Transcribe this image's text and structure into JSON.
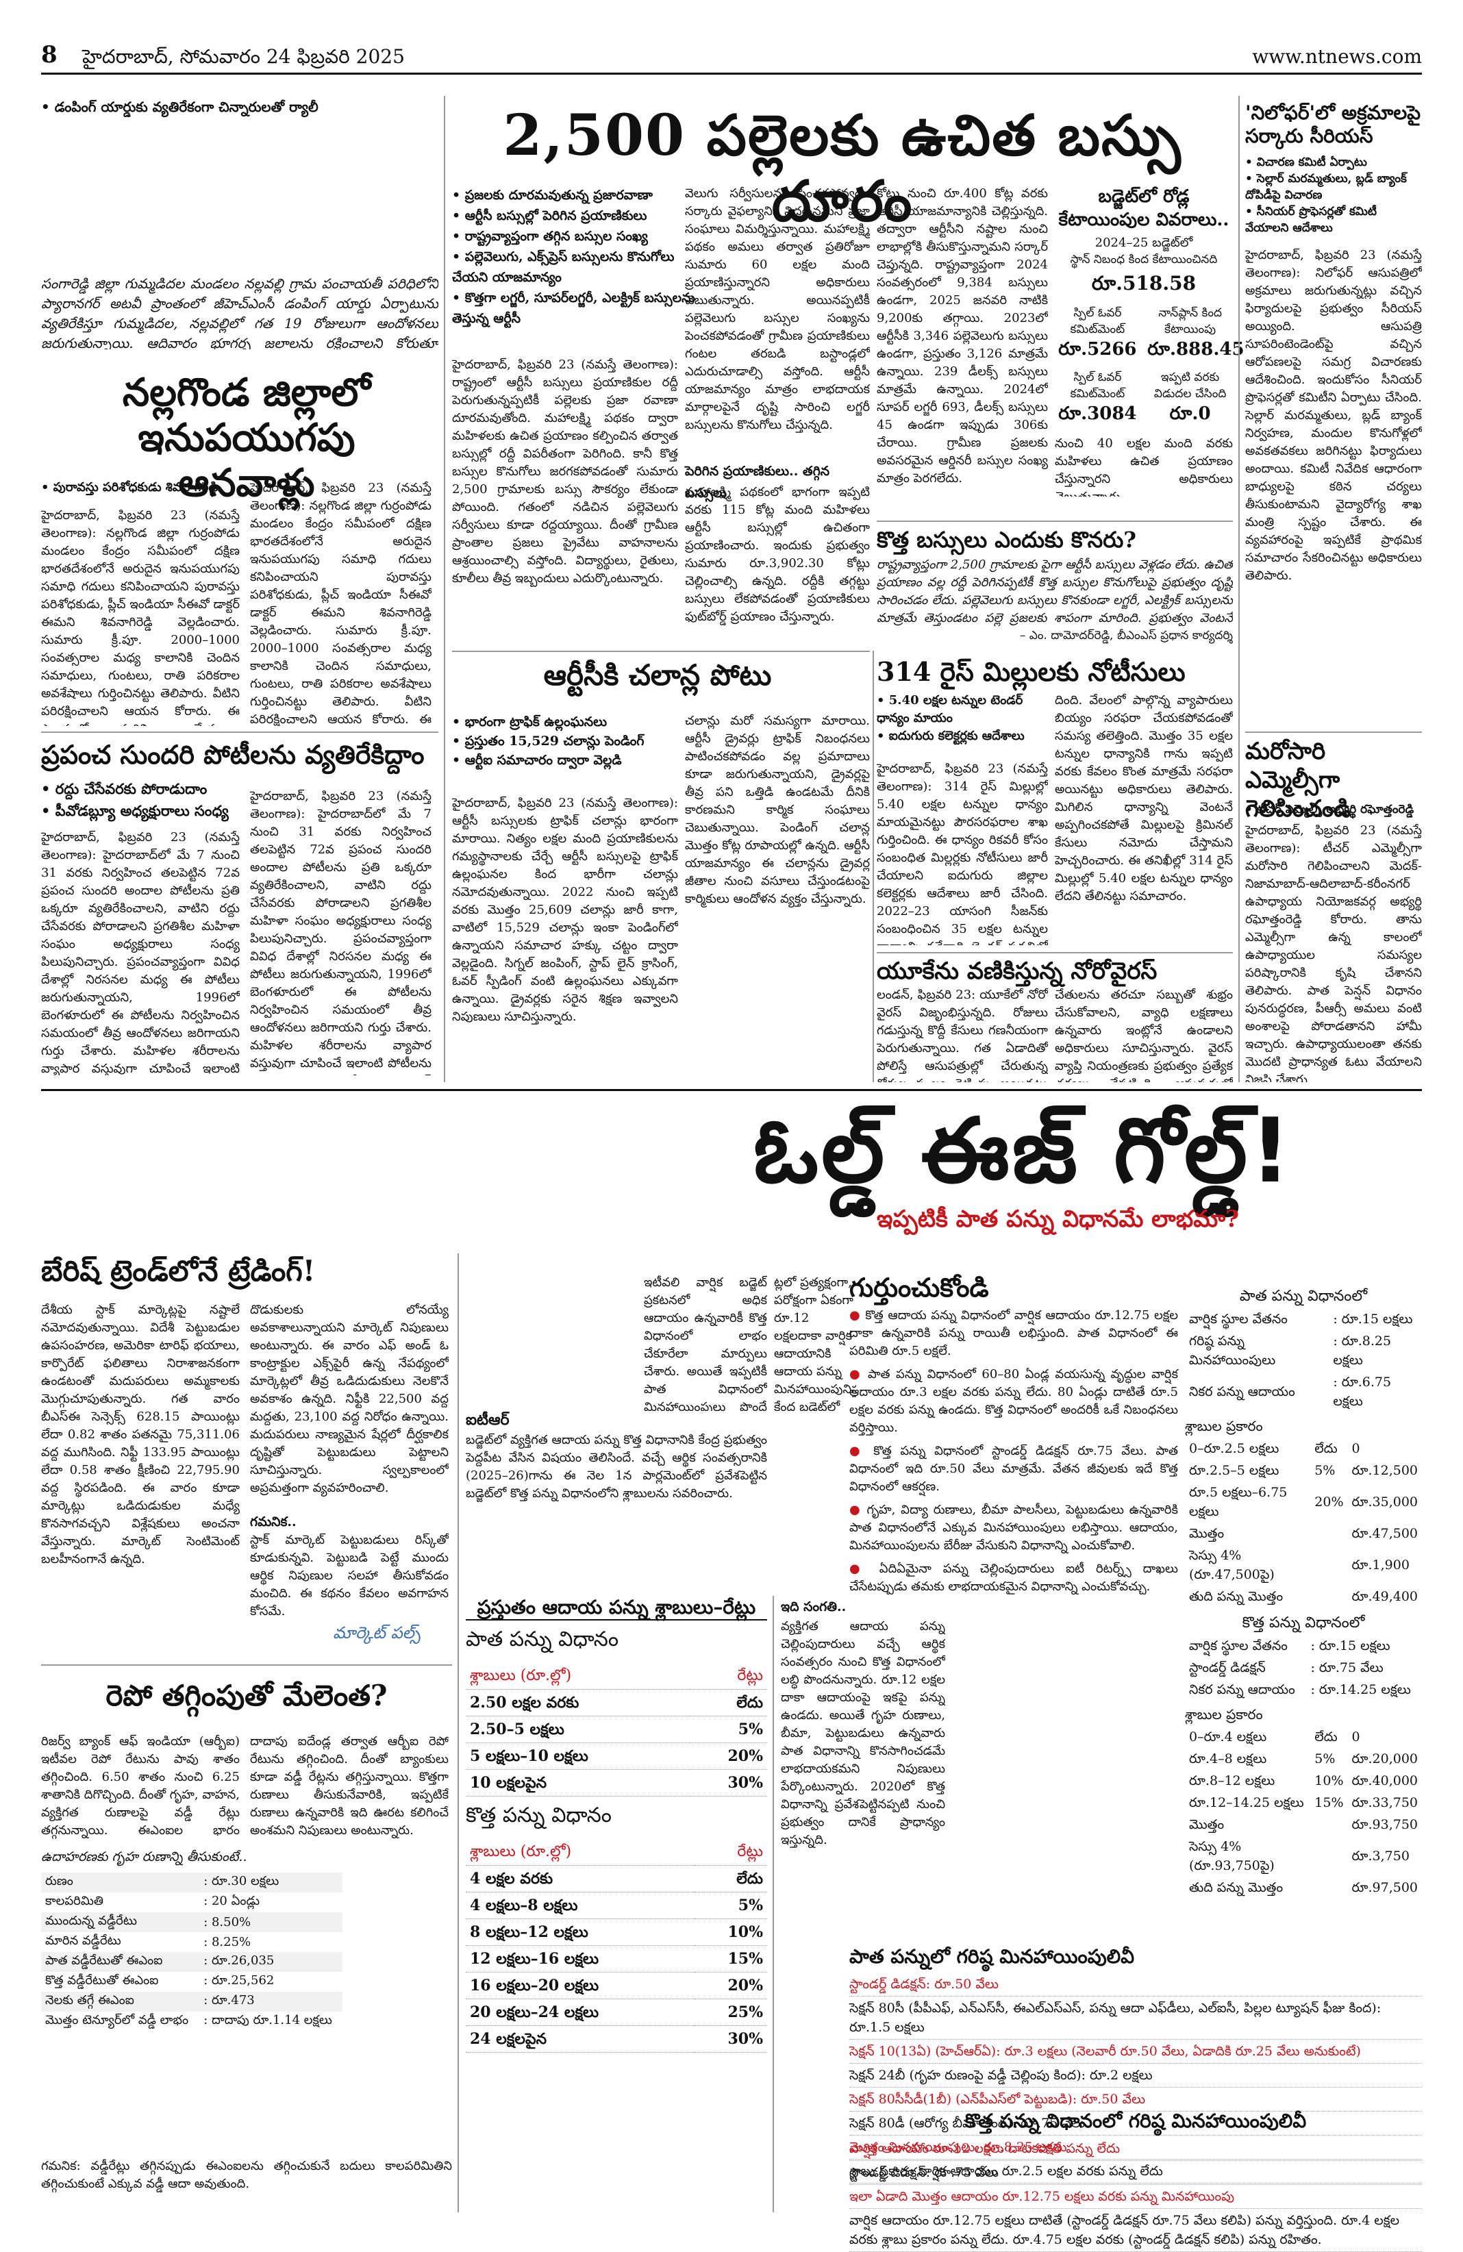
{
  "header": {
    "page_number": "8",
    "date_line": "హైదరాబాద్, సోమవారం 24 ఫిబ్రవరి 2025",
    "website": "www.ntnews.com"
  },
  "strip": {
    "text": "• డంపింగ్ యార్డుకు వ్యతిరేకంగా చిన్నారులతో ర్యాలీ"
  },
  "sangareddy": {
    "body": "సంగారెడ్డి జిల్లా గుమ్మడిదల మండలం నల్లవల్లి గ్రామ పంచాయతీ పరిధిలోని ప్యారానగర్ అటవీ ప్రాంతంలో జీహెచ్‌ఎంసీ డంపింగ్ యార్డు ఏర్పాటును వ్యతిరేకిస్తూ గుమ్మడిదల, నల్లవల్లిలో గత 19 రోజులుగా ఆందోళనలు జరుగుతున్నాయి. ఆదివారం భూగర్భ జలాలను రక్షించాలని కోరుతూ చిన్నారులతో ర్యాలీ నిర్వహించారు."
  },
  "nalgonda": {
    "headline": "నల్లగొండ జిల్లాలో ఇనుపయుగపు ఆనవాళ్లు",
    "bullet": "పురావస్తు పరిశోధకుడు శివనాగిరెడ్డి",
    "body": "హైదరాబాద్, ఫిబ్రవరి 23 (నమస్తే తెలంగాణ): నల్లగొండ జిల్లా గుర్రంపోడు మండలం కేంద్రం సమీపంలో దక్షిణ భారతదేశంలోనే అరుదైన ఇనుపయుగపు సమాధి గదులు కనిపించాయని పురావస్తు పరిశోధకుడు, ప్లీచ్ ఇండియా సీఈవో డాక్టర్ ఈమని శివనాగిరెడ్డి వెల్లడించారు. సుమారు క్రీ.పూ. 2000–1000 సంవత్సరాల మధ్య కాలానికి చెందిన సమాధులు, గుంటలు, రాతి పరికరాల అవశేషాలు గుర్తించినట్టు తెలిపారు. వీటిని పరిరక్షించాలని ఆయన కోరారు. ఈ ప్రాంతంలో మరిన్ని అన్వేషణలు జరపాల్సిన అవసరం ఉందన్నారు. స్థానిక యువకులు, విద్యార్థులు చారిత్రక సంపదను కాపాడాలని సూచించారు. గ్రామ శివారులోని కొండ ప్రాంతంలో పెద్ద సంఖ్యలో ఈ ఆనవాళ్లు ఉన్నాయని ఆయన వివరించారు."
  },
  "miss_world": {
    "headline": "ప్రపంచ సుందరి పోటీలను వ్యతిరేకిద్దాం",
    "bullets": [
      "రద్దు చేసేవరకు పోరాడుదాం",
      "పీవోడబ్ల్యూ అధ్యక్షురాలు సంధ్య"
    ],
    "body": "హైదరాబాద్, ఫిబ్రవరి 23 (నమస్తే తెలంగాణ): హైదరాబాద్‌లో మే 7 నుంచి 31 వరకు నిర్వహించ తలపెట్టిన 72వ ప్రపంచ సుందరి అందాల పోటీలను ప్రతి ఒక్కరూ వ్యతిరేకించాలని, వాటిని రద్దు చేసేవరకు పోరాడాలని ప్రగతిశీల మహిళా సంఘం అధ్యక్షురాలు సంధ్య పిలుపునిచ్చారు. ప్రపంచవ్యాప్తంగా వివిధ దేశాల్లో నిరసనల మధ్య ఈ పోటీలు జరుగుతున్నాయని, 1996లో బెంగళూరులో ఈ పోటీలను నిర్వహించిన సమయంలో తీవ్ర ఆందోళనలు జరిగాయని గుర్తు చేశారు. మహిళల శరీరాలను వ్యాపార వస్తువుగా చూపించే ఇలాంటి పోటీలను ప్రభుత్వం విరమించుకోవాలని డిమాండ్ చేశారు. హైదరాబాద్‌లో ఈ పోటీలు నిర్వహించడం తెలంగాణ సంస్కృతికి విరుద్ధమని పేర్కొన్నారు. మహిళా సంఘాలు ఐక్యంగా ఉద్యమించాలని కోరారు."
  },
  "bus": {
    "headline": "2,500 పల్లెలకు ఉచిత బస్సు దూరం",
    "bullets": [
      "ప్రజలకు దూరమవుతున్న ప్రజారవాణా",
      "ఆర్టీసీ బస్సుల్లో పెరిగిన ప్రయాణికులు",
      "రాష్ట్రవ్యాప్తంగా తగ్గిన బస్సుల సంఖ్య",
      "పల్లెవెలుగు, ఎక్స్‌ప్రెస్ బస్సులను కొనుగోలు చేయని యాజమాన్యం",
      "కొత్తగా లగ్జరీ, సూపర్‌లగ్జరీ, ఎలక్ట్రిక్ బస్సులను తెస్తున్న ఆర్టీసీ"
    ],
    "body1": "హైదరాబాద్, ఫిబ్రవరి 23 (నమస్తే తెలంగాణ): రాష్ట్రంలో ఆర్టీసీ బస్సులు ప్రయాణికుల రద్దీ పెరుగుతున్నప్పటికీ పల్లెలకు ప్రజా రవాణా దూరమవుతోంది. మహాలక్ష్మి పథకం ద్వారా మహిళలకు ఉచిత ప్రయాణం కల్పించిన తర్వాత బస్సుల్లో రద్దీ విపరీతంగా పెరిగింది. కానీ కొత్త బస్సుల కొనుగోలు జరగకపోవడంతో సుమారు 2,500 గ్రామాలకు బస్సు సౌకర్యం లేకుండా పోయింది. గతంలో నడిచిన పల్లెవెలుగు సర్వీసులు కూడా రద్దయ్యాయి. దీంతో గ్రామీణ ప్రాంతాల ప్రజలు ప్రైవేటు వాహనాలను ఆశ్రయించాల్సి వస్తోంది. విద్యార్థులు, రైతులు, కూలీలు తీవ్ర ఇబ్బందులు ఎదుర్కొంటున్నారు.",
    "body2": "వెలుగు సర్వీసులను పెంచకపోవ్వడం సర్కారు వైఫల్యానికి నిదర్శనమని ప్రజా సంఘాలు విమర్శిస్తున్నాయి. మహాలక్ష్మి పథకం అమలు తర్వాత ప్రతిరోజూ సుమారు 60 లక్షల మంది ప్రయాణిస్తున్నారని అధికారులు చెబుతున్నారు. అయినప్పటికీ పల్లెవెలుగు బస్సుల సంఖ్యను పెంచకపోవడంతో గ్రామీణ ప్రయాణికులు గంటల తరబడి బస్టాండ్లలో ఎదురుచూడాల్సి వస్తోంది. ఆర్టీసీ యాజమాన్యం మాత్రం లాభదాయక మార్గాలపైనే దృష్టి సారించి లగ్జరీ బస్సులను కొనుగోలు చేస్తున్నది.",
    "subhead": "పెరిగిన ప్రయాణికులు.. తగ్గిన బస్సులు",
    "body3": "మహాలక్ష్మి పథకంలో భాగంగా ఇప్పటి వరకు 115 కోట్ల మంది మహిళలు ఆర్టీసీ బస్సుల్లో ఉచితంగా ప్రయాణించారు. ఇందుకు ప్రభుత్వం సుమారు రూ.3,902.30 కోట్లు చెల్లించాల్సి ఉన్నది. రద్దీకి తగ్గట్టు బస్సులు లేకపోవడంతో ప్రయాణికులు ఫుట్‌బోర్డ్ ప్రయాణం చేస్తున్నారు.",
    "body4": "కోట్లు నుంచి రూ.400 కోట్ల వరకు ఆర్టీసీ యాజమాన్యానికి చెల్లిస్తున్నది. తద్వారా ఆర్టీసీని నష్టాల నుంచి లాభాల్లోకి తీసుకొస్తున్నామని సర్కార్ చెప్తున్నది. రాష్ట్రవ్యాప్తంగా 2024 సంవత్సరంలో 9,384 బస్సులు ఉండగా, 2025 జనవరి నాటికి 9,200కు తగ్గాయి. 2023లో ఆర్టీసీకి 3,346 పల్లెవెలుగు బస్సులు ఉండగా, ప్రస్తుతం 3,126 మాత్రమే ఉన్నాయి. 239 డీలక్స్ బస్సులు మాత్రమే ఉన్నాయి. 2024లో సూపర్ లగ్జరీ 693, డీలక్స్ బస్సులు 45 ఉండగా ఇప్పుడు 306కు చేరాయి. గ్రామీణ ప్రజలకు అవసరమైన ఆర్డినరీ బస్సుల సంఖ్య మాత్రం పెరగలేదు.",
    "budget_title": "బడ్జెట్‌లో రోడ్ల కేటాయింపుల వివరాలు..",
    "budget_year": "2024–25 బడ్జెట్‌లో",
    "budget_line": "స్థాన్ నిబంధ కింద కేటాయించినది",
    "budget_amount": "రూ.518.58",
    "spill_label": "స్పిల్ ఓవర్ కమిట్‌మెంట్",
    "spill_amount": "రూ.5266",
    "nonplan_label": "నాన్‌ప్లాన్ కింద కేటాయింపు",
    "nonplan_amount": "రూ.888.45",
    "spill2_label": "స్పిల్ ఓవర్ కమిట్‌మెంట్",
    "spill2_amount": "రూ.3084",
    "release_label": "ఇప్పటి వరకు విడుదల చేసింది",
    "release_amount": "రూ.0",
    "budget_note": "నుంచి 40 లక్షల మంది వరకు మహిళలు ఉచిత ప్రయాణం చేస్తున్నారని అధికారులు చెబుతున్నారు."
  },
  "new_buses": {
    "headline": "కొత్త బస్సులు ఎందుకు కొనరు?",
    "body": "రాష్ట్రవ్యాప్తంగా 2,500 గ్రామాలకు పైగా ఆర్టీసీ బస్సులు వెళ్లడం లేదు. ఉచిత ప్రయాణం వల్ల రద్దీ పెరిగినప్పటికీ కొత్త బస్సుల కొనుగోలుపై ప్రభుత్వం దృష్టి సారించడం లేదు. పల్లెవెలుగు బస్సులు కొనకుండా లగ్జరీ, ఎలక్ట్రిక్ బస్సులను మాత్రమే తెస్తుండటం పల్లె ప్రజలకు శాపంగా మారింది. ప్రభుత్వం వెంటనే స్పందించి కొత్త బస్సులను కొనుగోలు చేయాలి.",
    "quote_by": "– ఎం. దామోదర్‌రెడ్డి, బీఎంఎస్ ప్రధాన కార్యదర్శి"
  },
  "rtc_fines": {
    "headline": "ఆర్టీసీకి చలాన్ల పోటు",
    "bullets": [
      "భారంగా ట్రాఫిక్ ఉల్లంఘనలు",
      "ప్రస్తుతం 15,529 చలాన్లు పెండింగ్",
      "ఆర్టీఐ సమాచారం ద్వారా వెల్లడి"
    ],
    "body": "హైదరాబాద్, ఫిబ్రవరి 23 (నమస్తే తెలంగాణ): ఆర్టీసీ బస్సులకు ట్రాఫిక్ చలాన్లు భారంగా మారాయి. నిత్యం లక్షల మంది ప్రయాణికులను గమ్యస్థానాలకు చేర్చే ఆర్టీసీ బస్సులపై ట్రాఫిక్ ఉల్లంఘనల కింద భారీగా చలాన్లు నమోదవుతున్నాయి. 2022 నుంచి ఇప్పటి వరకు మొత్తం 25,609 చలాన్లు జారీ కాగా, వాటిలో 15,529 చలాన్లు ఇంకా పెండింగ్‌లో ఉన్నాయని సమాచార హక్కు చట్టం ద్వారా వెల్లడైంది. సిగ్నల్ జంపింగ్, స్టాప్ లైన్ క్రాసింగ్, ఓవర్ స్పీడింగ్ వంటి ఉల్లంఘనలు ఎక్కువగా ఉన్నాయి. డ్రైవర్లకు సరైన శిక్షణ ఇవ్వాలని నిపుణులు సూచిస్తున్నారు.",
    "body2": "చలాన్లు మరో సమస్యగా మారాయి. ఆర్టీసీ డ్రైవర్లు ట్రాఫిక్ నిబంధనలు పాటించకపోవడం వల్ల ప్రమాదాలు కూడా జరుగుతున్నాయని, డ్రైవర్లపై తీవ్ర పని ఒత్తిడి ఉండటమే దీనికి కారణమని కార్మిక సంఘాలు చెబుతున్నాయి. పెండింగ్ చలాన్ల మొత్తం కోట్ల రూపాయల్లో ఉన్నది. ఆర్టీసీ యాజమాన్యం ఈ చలాన్లను డ్రైవర్ల జీతాల నుంచి వసూలు చేస్తుండటంపై కార్మికులు ఆందోళన వ్యక్తం చేస్తున్నారు."
  },
  "rice_mills": {
    "headline": "314 రైస్ మిల్లులకు నోటీసులు",
    "bullets": [
      "5.40 లక్షల టన్నుల టెండర్ ధాన్యం మాయం",
      "ఐదుగురు కలెక్టర్లకు ఆదేశాలు"
    ],
    "body": "హైదరాబాద్, ఫిబ్రవరి 23 (నమస్తే తెలంగాణ): 314 రైస్ మిల్లుల్లో 5.40 లక్షల టన్నుల ధాన్యం మాయమైనట్టు పౌరసరఫరాల శాఖ గుర్తించింది. ఈ ధాన్యం రికవరీ కోసం సంబంధిత మిల్లర్లకు నోటీసులు జారీ చేయాలని ఐదుగురు జిల్లాల కలెక్టర్లకు ఆదేశాలు జారీ చేసింది. 2022–23 యాసంగి సీజన్‌కు సంబంధించిన 35 లక్షల టన్నుల ధాన్యాన్ని గతేడాది టెండర్ పద్ధతిలో విక్రయించగా, మిల్లర్లు ఇప్పటికీ పూర్తిస్థాయిలో అప్పగించలేదు.",
    "body2": "దింది. వేలంలో పాల్గొన్న వ్యాపారులు బియ్యం సరఫరా చేయకపోవడంతో సమస్య తలెత్తింది. మొత్తం 35 లక్షల టన్నుల ధాన్యానికి గాను ఇప్పటి వరకు కేవలం కొంత మాత్రమే సరఫరా అయినట్టు అధికారులు తెలిపారు. మిగిలిన ధాన్యాన్ని వెంటనే అప్పగించకపోతే మిల్లులపై క్రిమినల్ కేసులు నమోదు చేస్తామని హెచ్చరించారు. ఈ తనిఖీల్లో 314 రైస్ మిల్లుల్లో 5.40 లక్షల టన్నుల ధాన్యం లేదని తేలినట్టు సమాచారం."
  },
  "norovirus": {
    "headline": "యూకేను వణికిస్తున్న నోరోవైరస్",
    "body": "లండన్, ఫిబ్రవరి 23: యూకేలో నోరో వైరస్ విజృంభిస్తున్నది. రోజులు గడుస్తున్న కొద్దీ కేసులు గణనీయంగా పెరుగుతున్నాయి. గత ఏడాదితో పోలిస్తే ఆసుపత్రుల్లో చేరుతున్న రోగుల సంఖ్య రెట్టింపు అయినట్టు ఆరోగ్య అధికారులు తెలిపారు. వాంతులు, విరేచనాలు, కడుపు నొప్పి వంటి లక్షణాలతో బాధితులు ఆసుపత్రులకు క్యూ కడుతున్నారు. దీంతో పలు ఆసుపత్రుల్లో 'కోడ్ బ్లాక్' ప్రకటించారు.",
    "body2": "చేతులను తరచూ సబ్బుతో శుభ్రం చేసుకోవాలని, వ్యాధి లక్షణాలు ఉన్నవారు ఇంట్లోనే ఉండాలని అధికారులు సూచిస్తున్నారు. వైరస్ వ్యాప్తి నియంత్రణకు ప్రభుత్వం ప్రత్యేక చర్యలు చేపట్టింది. ఆసుపత్రుల్లో సందర్శకుల రాకపోకలపై ఆంక్షలు విధించారు. బ్రిటిష్ ఆరోగ్య శాఖ నిపుణులు పరిస్థితిని నిశితంగా పరిశీలిస్తున్నారు."
  },
  "right_col": {
    "headline1": "'నిలోఫర్'లో అక్రమాలపై సర్కారు సీరియస్",
    "bullets": [
      "విచారణ కమిటీ ఏర్పాటు",
      "సెల్లార్ మరమ్మతులు, బ్లడ్ బ్యాంక్ దోపిడీపై విచారణ",
      "సీనియర్ ప్రొఫెసర్లతో కమిటీ వేయాలని ఆదేశాలు"
    ],
    "body1": "హైదరాబాద్, ఫిబ్రవరి 23 (నమస్తే తెలంగాణ): నిలోఫర్ ఆసుపత్రిలో అక్రమాలు జరుగుతున్నట్లు వచ్చిన ఫిర్యాదులపై ప్రభుత్వం సీరియస్ అయ్యింది. ఆసుపత్రి సూపరింటెండెంట్‌పై వచ్చిన ఆరోపణలపై సమగ్ర విచారణకు ఆదేశించింది. ఇందుకోసం సీనియర్ ప్రొఫెసర్లతో కమిటీని ఏర్పాటు చేసింది. సెల్లార్ మరమ్మతులు, బ్లడ్ బ్యాంక్ నిర్వహణ, మందుల కొనుగోళ్లలో అవకతవకలు జరిగినట్టు ఫిర్యాదులు అందాయి. కమిటీ నివేదిక ఆధారంగా బాధ్యులపై కఠిన చర్యలు తీసుకుంటామని వైద్యారోగ్య శాఖ మంత్రి స్పష్టం చేశారు. ఈ వ్యవహారంపై ఇప్పటికే ప్రాథమిక సమాచారం సేకరించినట్టు అధికారులు తెలిపారు.",
    "headline2": "మరోసారి ఎమ్మెల్సీగా గెలిపించండి",
    "bullet2": "టీచర్ ఎమ్మెల్సీ అభ్యర్థి రఘోత్తంరెడ్డి",
    "body2": "హైదరాబాద్, ఫిబ్రవరి 23 (నమస్తే తెలంగాణ): టీచర్ ఎమ్మెల్సీగా మరోసారి గెలిపించాలని మెదక్-నిజామాబాద్-ఆదిలాబాద్-కరీంనగర్ ఉపాధ్యాయ నియోజకవర్గ అభ్యర్థి రఘోత్తంరెడ్డి కోరారు. తాను ఎమ్మెల్సీగా ఉన్న కాలంలో ఉపాధ్యాయుల సమస్యల పరిష్కారానికి కృషి చేశానని తెలిపారు. పాత పెన్షన్ విధానం పునరుద్ధరణ, పీఆర్సీ అమలు వంటి అంశాలపై పోరాడతానని హామీ ఇచ్చారు. ఉపాధ్యాయులంతా తనకు మొదటి ప్రాధాన్యత ఓటు వేయాలని విజ్ఞప్తి చేశారు."
  },
  "old_gold": {
    "headline": "ఓల్డ్ ఈజ్ గోల్డ్!",
    "subhead": "ఇప్పటికీ పాత పన్ను విధానమే లాభమా?",
    "remember": "గుర్తుంచుకోండి",
    "points": [
      "కొత్త ఆదాయ పన్ను విధానంలో వార్షిక ఆదాయం రూ.12.75 లక్షల దాకా ఉన్నవారికి పన్ను రాయితీ లభిస్తుంది. పాత విధానంలో ఈ పరిమితి రూ.5 లక్షలే.",
      "పాత పన్ను విధానంలో 60–80 ఏండ్ల వయసున్న వృద్ధుల వార్షిక ఆదాయం రూ.3 లక్షల వరకు పన్ను లేదు. 80 ఏండ్లు దాటితే రూ.5 లక్షల వరకు పన్ను ఉండదు. కొత్త విధానంలో అందరికీ ఒకే నిబంధనలు వర్తిస్తాయి.",
      "కొత్త పన్ను విధానంలో స్టాండర్డ్ డిడక్షన్ రూ.75 వేలు. పాత విధానంలో ఇది రూ.50 వేలు మాత్రమే. వేతన జీవులకు ఇదే కొత్త విధానంలో ఆకర్షణ.",
      "గృహ, విద్యా రుణాలు, బీమా పాలసీలు, పెట్టుబడులు ఉన్నవారికి పాత విధానంలోనే ఎక్కువ మినహాయింపులు లభిస్తాయి. ఆదాయం, మినహాయింపులను బేరీజు వేసుకుని విధానాన్ని ఎంచుకోవాలి.",
      "ఏదిఏమైనా పన్ను చెల్లింపుదారులు ఐటీ రిటర్న్స్ దాఖలు చేసేటప్పుడు తమకు లాభదాయకమైన విధానాన్ని ఎంచుకోవచ్చు."
    ],
    "body_left": "ఓల్డ్ ఈజ్ గోల్డ్ అన్నట్టు పాత పన్ను విధానమే ఇప్పటికీ చాలామందికి లాభదాయకంగా ఉన్నది. కేంద్ర బడ్జెట్‌లో కొత్త పన్ను విధానంలో రూ.12 లక్షల దాకా ఆదాయంపై పన్ను మినహాయింపు ఇచ్చినప్పటికీ, పాత విధానంలో లభించే మినహాయింపులను పూర్తిగా వినియోగించుకునేవారికి పాత విధానమే మేలని నిపుణులు చెబుతున్నారు. గృహ రుణం, జీవిత బీమా, ఆరోగ్య బీమా, పిల్లల ట్యూషన్ ఫీజులు వంటి వాటిపై లభించే మినహాయింపులు పాత విధానానికే పరిమితం.",
    "body_mid": "మధ్యతరగతి వేతన జీవులకు కొత్త విధానంలో ఊరట లభించినప్పటికీ, అధిక ఆదాయం ఉండి పెట్టుబడులు చేసేవారికి పాత విధానమే మేలు. ఉదాహరణకు ఏడాదికి రూ.15 లక్షల ఆదాయం ఉండి, సెక్షన్ 80సీ కింద రూ.1.5 లక్షలు, గృహ రుణ వడ్డీ రూ.2 లక్షలు, ఆరోగ్య బీమా రూ.75 వేలు మినహాయింపులు పొందితే పాత విధానంలో తక్కువ పన్ను పడుతుంది. అందుకే ప్రతి పన్ను చెల్లింపుదారు తమ ఆర్థిక పరిస్థితిని బట్టి లెక్కలు వేసుకోవాలి.",
    "current_slabs_title": "ప్రస్తుతం ఆదాయ పన్ను శ్లాబులు–రేట్లు",
    "old_regime_title": "పాత పన్ను విధానం",
    "slab_head_left": "శ్లాబులు (రూ.ల్లో)",
    "slab_head_right": "రేట్లు",
    "old_slabs": [
      {
        "slab": "2.50 లక్షల వరకు",
        "rate": "లేదు"
      },
      {
        "slab": "2.50–5 లక్షలు",
        "rate": "5%"
      },
      {
        "slab": "5 లక్షలు–10 లక్షలు",
        "rate": "20%"
      },
      {
        "slab": "10 లక్షలపైన",
        "rate": "30%"
      }
    ],
    "new_regime_title": "కొత్త పన్ను విధానం",
    "new_slabs": [
      {
        "slab": "4 లక్షల వరకు",
        "rate": "లేదు"
      },
      {
        "slab": "4 లక్షలు–8 లక్షలు",
        "rate": "5%"
      },
      {
        "slab": "8 లక్షలు–12 లక్షలు",
        "rate": "10%"
      },
      {
        "slab": "12 లక్షలు–16 లక్షలు",
        "rate": "15%"
      },
      {
        "slab": "16 లక్షలు–20 లక్షలు",
        "rate": "20%"
      },
      {
        "slab": "20 లక్షలు–24 లక్షలు",
        "rate": "25%"
      },
      {
        "slab": "24 లక్షలపైన",
        "rate": "30%"
      }
    ],
    "example_old_title": "పాత పన్ను విధానంలో",
    "example_old": [
      {
        "k": "వార్షిక స్థూల వేతనం",
        "v": "రూ.15 లక్షలు"
      },
      {
        "k": "గరిష్ఠ పన్ను మినహాయింపులు",
        "v": "రూ.8.25 లక్షలు"
      },
      {
        "k": "నికర పన్ను ఆదాయం",
        "v": "రూ.6.75 లక్షలు"
      }
    ],
    "example_old_slab_title": "శ్లాబుల ప్రకారం",
    "example_old_rows": [
      {
        "s": "0–రూ.2.5 లక్షలు",
        "r": "లేదు",
        "t": "0"
      },
      {
        "s": "రూ.2.5–5 లక్షలు",
        "r": "5%",
        "t": "రూ.12,500"
      },
      {
        "s": "రూ.5 లక్షలు–6.75 లక్షలు",
        "r": "20%",
        "t": "రూ.35,000"
      },
      {
        "s": "మొత్తం",
        "r": "",
        "t": "రూ.47,500"
      },
      {
        "s": "సెస్సు 4% (రూ.47,500పై)",
        "r": "",
        "t": "రూ.1,900"
      },
      {
        "s": "తుది పన్ను మొత్తం",
        "r": "",
        "t": "రూ.49,400"
      }
    ],
    "example_new_title": "కొత్త పన్ను విధానంలో",
    "example_new": [
      {
        "k": "వార్షిక స్థూల వేతనం",
        "v": "రూ.15 లక్షలు"
      },
      {
        "k": "స్టాండర్డ్ డిడక్షన్",
        "v": "రూ.75 వేలు"
      },
      {
        "k": "నికర పన్ను ఆదాయం",
        "v": "రూ.14.25 లక్షలు"
      }
    ],
    "example_new_rows": [
      {
        "s": "0–రూ.4 లక్షలు",
        "r": "లేదు",
        "t": "0"
      },
      {
        "s": "రూ.4–8 లక్షలు",
        "r": "5%",
        "t": "రూ.20,000"
      },
      {
        "s": "రూ.8–12 లక్షలు",
        "r": "10%",
        "t": "రూ.40,000"
      },
      {
        "s": "రూ.12–14.25 లక్షలు",
        "r": "15%",
        "t": "రూ.33,750"
      },
      {
        "s": "మొత్తం",
        "r": "",
        "t": "రూ.93,750"
      },
      {
        "s": "సెస్సు 4% (రూ.93,750పై)",
        "r": "",
        "t": "రూ.3,750"
      },
      {
        "s": "తుది పన్ను మొత్తం",
        "r": "",
        "t": "రూ.97,500"
      }
    ],
    "old_max_title": "పాత పన్నులో గరిష్ఠ మినహాయింపులివీ",
    "old_max": [
      "స్టాండర్డ్ డిడక్షన్: రూ.50 వేలు",
      "సెక్షన్ 80సీ (పీపీఎఫ్, ఎన్‌ఎస్‌సీ, ఈఎల్‌ఎస్‌ఎస్, పన్ను ఆదా ఎఫ్‌డీలు, ఎల్‌ఐసీ, పిల్లల ట్యూషన్ ఫీజు కింద): రూ.1.5 లక్షలు",
      "సెక్షన్ 10(13ఏ) (హెచ్‌ఆర్‌ఏ): రూ.3 లక్షలు (నెలవారీ రూ.50 వేలు, ఏడాదికి రూ.25 వేలు అనుకుంటే)",
      "సెక్షన్ 24బీ (గృహ రుణంపై వడ్డీ చెల్లింపు కింద): రూ.2 లక్షలు",
      "సెక్షన్ 80సీసీడీ(1బీ) (ఎన్‌పీఎస్‌లో పెట్టుబడి): రూ.50 వేలు",
      "సెక్షన్ 80డీ (ఆరోగ్య బీమా కింద): రూ.75 వేలు",
      "మొత్తం మినహాయింపులు: రూ.8.25 లక్షలు",
      "శ్లాబు ప్రకారం వార్షిక ఆదాయం రూ.2.5 లక్షల వరకు పన్ను లేదు"
    ],
    "new_max_title": "కొత్త పన్ను విధానంలో గరిష్ఠ మినహాయింపులివీ",
    "new_max": [
      "వార్షిక ఆదాయం రూ.12 లక్షలు దాటకపోతే పన్ను లేదు",
      "స్టాండర్డ్ డిడక్షన్: రూ.75 వేలు",
      "ఇలా ఏడాది మొత్తం ఆదాయం రూ.12.75 లక్షలు వరకు పన్ను మినహాయింపు",
      "వార్షిక ఆదాయం రూ.12.75 లక్షలు దాటితే (స్టాండర్డ్ డిడక్షన్ రూ.75 వేలు కలిపి) పన్ను వర్తిస్తుంది. రూ.4 లక్షల వరకు శ్లాబు ప్రకారం పన్ను లేదు. రూ.4.75 లక్షల వరకు (స్టాండర్డ్ డిడక్షన్ కలిపి) పన్ను రహితం."
    ]
  },
  "bearish": {
    "headline": "బేరిష్ ట్రెండ్‌లోనే ట్రేడింగ్!",
    "body1": "దేశీయ స్టాక్ మార్కెట్లపై నష్టాలే నమోదవుతున్నాయి. విదేశీ పెట్టుబడుల ఉపసంహరణ, అమెరికా టారిఫ్ భయాలు, కార్పొరేట్ ఫలితాలు నిరాశాజనకంగా ఉండటంతో మదుపరులు అమ్మకాలకు మొగ్గుచూపుతున్నారు. గత వారం బీఎస్‌ఈ సెన్సెక్స్ 628.15 పాయింట్లు లేదా 0.82 శాతం పతనమై 75,311.06 వద్ద ముగిసింది. నిఫ్టీ 133.95 పాయింట్లు లేదా 0.58 శాతం క్షీణించి 22,795.90 వద్ద స్థిరపడింది. ఈ వారం కూడా మార్కెట్లు ఒడిదుడుకుల మధ్యే కొనసాగవచ్చని విశ్లేషకులు అంచనా వేస్తున్నారు. మార్కెట్ సెంటిమెంట్ బలహీనంగానే ఉన్నది.",
    "body2": "దొడుకులకు లోనయ్యే అవకాశాలున్నాయని మార్కెట్ నిపుణులు అంటున్నారు. ఈ వారం ఎఫ్ అండ్ ఓ కాంట్రాక్టుల ఎక్స్‌పైరీ ఉన్న నేపథ్యంలో మార్కెట్లలో తీవ్ర ఒడిదుడుకులు నెలకొనే అవకాశం ఉన్నది. నిఫ్టీకి 22,500 వద్ద మద్దతు, 23,100 వద్ద నిరోధం ఉన్నాయి. మదుపరులు నాణ్యమైన షేర్లలో దీర్ఘకాలిక దృష్టితో పెట్టుబడులు పెట్టాలని సూచిస్తున్నారు. స్వల్పకాలంలో అప్రమత్తంగా వ్యవహరించాలి.",
    "sub": "గమనిక..",
    "body3": "స్టాక్ మార్కెట్ పెట్టుబడులు రిస్క్‌తో కూడుకున్నవి. పెట్టుబడి పెట్టే ముందు ఆర్థిక నిపుణుల సలహా తీసుకోవడం మంచిది. ఈ కథనం కేవలం అవగాహన కోసమే.",
    "byline": "మార్కెట్ పల్స్"
  },
  "middle": {
    "body1": "ట్లలో ప్రత్యక్షంగా, పరోక్షంగా ఏకంగా రూ.12 లక్షలదాకా వార్షిక ఆదాయానికి ఆదాయ పన్ను మినహాయింపునిస్తూ కేంద్ర బడ్జెట్‌లో ప్రకటన వచ్చిన సంగతి విదితమే. స్టాండర్డ్ డిడక్షన్ రూ.75 వేలతో కలిపి ఇది రూ.12.75 లక్షలు అవుతుంది.",
    "label": "ఐటీఆర్",
    "body2": "బడ్జెట్‌లో వ్యక్తిగత ఆదాయ పన్ను కొత్త విధానానికి కేంద్ర ప్రభుత్వం పెద్దపీట వేసిన విషయం తెలిసిందే. వచ్చే ఆర్థిక సంవత్సరానికి (2025–26)గాను ఈ నెల 1న పార్లమెంట్‌లో ప్రవేశపెట్టిన బడ్జెట్‌లో కొత్త పన్ను విధానంలోని శ్లాబులను సవరించారు.",
    "body3": "ఇటీవలి వార్షిక బడ్జెట్ ప్రకటనలో అధిక ఆదాయం ఉన్నవారికీ కొత్త విధానంలో లాభం చేకూరేలా మార్పులు చేశారు. అయితే ఇప్పటికీ పాత విధానంలో మినహాయింపులు పొందే వారికి అదే మేలని చార్టర్డ్ అకౌంటెంట్లు చెబుతున్నారు.",
    "sub": "ఇది సంగతి..",
    "body4": "వ్యక్తిగత ఆదాయ పన్ను చెల్లింపుదారులు వచ్చే ఆర్థిక సంవత్సరం నుంచి కొత్త విధానంలో లబ్ధి పొందనున్నారు. రూ.12 లక్షల దాకా ఆదాయంపై ఇకపై పన్ను ఉండదు. అయితే గృహ రుణాలు, బీమా, పెట్టుబడులు ఉన్నవారు పాత విధానాన్ని కొనసాగించడమే లాభదాయకమని నిపుణులు పేర్కొంటున్నారు. 2020లో కొత్త విధానాన్ని ప్రవేశపెట్టినప్పటి నుంచి ప్రభుత్వం దానికే ప్రాధాన్యం ఇస్తున్నది."
  },
  "repo": {
    "headline": "రెపో తగ్గింపుతో మేలెంత?",
    "body1": "రిజర్వ్ బ్యాంక్ ఆఫ్ ఇండియా (ఆర్బీఐ) ఇటీవల రెపో రేటును పావు శాతం తగ్గించింది. 6.50 శాతం నుంచి 6.25 శాతానికి దిగొచ్చింది. దీంతో గృహ, వాహన, వ్యక్తిగత రుణాలపై వడ్డీ రేట్లు తగ్గనున్నాయి. ఈఎంఐల భారం తగ్గుతుంది.",
    "body2": "దాదాపు ఐదేండ్ల తర్వాత ఆర్బీఐ రెపో రేటును తగ్గించింది. దీంతో బ్యాంకులు కూడా వడ్డీ రేట్లను తగ్గిస్తున్నాయి. కొత్తగా రుణాలు తీసుకునేవారికి, ఇప్పటికే రుణాలు ఉన్నవారికి ఇది ఊరట కలిగించే అంశమని నిపుణులు అంటున్నారు.",
    "example_title": "ఉదాహరణకు గృహ రుణాన్ని తీసుకుంటే..",
    "rows": [
      {
        "k": "రుణం",
        "v": "రూ.30 లక్షలు"
      },
      {
        "k": "కాలపరిమితి",
        "v": "20 ఏండ్లు"
      },
      {
        "k": "ముందున్న వడ్డీరేటు",
        "v": "8.50%"
      },
      {
        "k": "మారిన వడ్డీరేటు",
        "v": "8.25%"
      },
      {
        "k": "పాత వడ్డీరేటుతో ఈఎంఐ",
        "v": "రూ.26,035"
      },
      {
        "k": "కొత్త వడ్డీరేటుతో ఈఎంఐ",
        "v": "రూ.25,562"
      },
      {
        "k": "నెలకు తగ్గే ఈఎంఐ",
        "v": "రూ.473"
      },
      {
        "k": "మొత్తం టెన్యూర్‌లో వడ్డీ లాభం",
        "v": "దాదాపు రూ.1.14 లక్షలు"
      }
    ],
    "note": "గమనిక: వడ్డీరేట్లు తగ్గినప్పుడు ఈఎంఐలను తగ్గించుకునే బదులు కాలపరిమితిని తగ్గించుకుంటే ఎక్కువ వడ్డీ ఆదా అవుతుంది."
  }
}
